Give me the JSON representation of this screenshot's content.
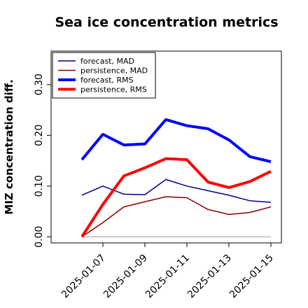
{
  "chart_data": {
    "type": "line",
    "title": "Sea ice concentration metrics",
    "y_label": "MIZ concentration diff.",
    "x": [
      "2025-01-06",
      "2025-01-07",
      "2025-01-08",
      "2025-01-09",
      "2025-01-10",
      "2025-01-11",
      "2025-01-12",
      "2025-01-13",
      "2025-01-14",
      "2025-01-15"
    ],
    "xticks": [
      "2025-01-07",
      "2025-01-09",
      "2025-01-11",
      "2025-01-13",
      "2025-01-15"
    ],
    "ylim": [
      -0.012,
      0.366
    ],
    "yticks": [
      {
        "value": 0,
        "label": "0.00"
      },
      {
        "value": 0.1,
        "label": "0.10"
      },
      {
        "value": 0.2,
        "label": "0.20"
      },
      {
        "value": 0.3,
        "label": "0.30"
      }
    ],
    "legend": "top-left",
    "series": [
      {
        "name": "forecast,  MAD",
        "color": "#00008b",
        "width": 1.5,
        "values": [
          0.082,
          0.1,
          0.084,
          0.083,
          0.113,
          0.1,
          0.091,
          0.082,
          0.071,
          0.068
        ]
      },
      {
        "name": "persistence, MAD",
        "color": "#8b0000",
        "width": 1.5,
        "values": [
          0.0,
          0.028,
          0.059,
          0.069,
          0.079,
          0.077,
          0.054,
          0.044,
          0.048,
          0.059
        ]
      },
      {
        "name": "forecast,  RMS",
        "color": "#0000ff",
        "width": 4,
        "values": [
          0.152,
          0.202,
          0.181,
          0.183,
          0.231,
          0.219,
          0.213,
          0.191,
          0.158,
          0.148
        ]
      },
      {
        "name": "persistence, RMS",
        "color": "#ff0000",
        "width": 4,
        "values": [
          0.0,
          0.064,
          0.12,
          0.136,
          0.154,
          0.152,
          0.108,
          0.097,
          0.109,
          0.129
        ]
      }
    ]
  }
}
